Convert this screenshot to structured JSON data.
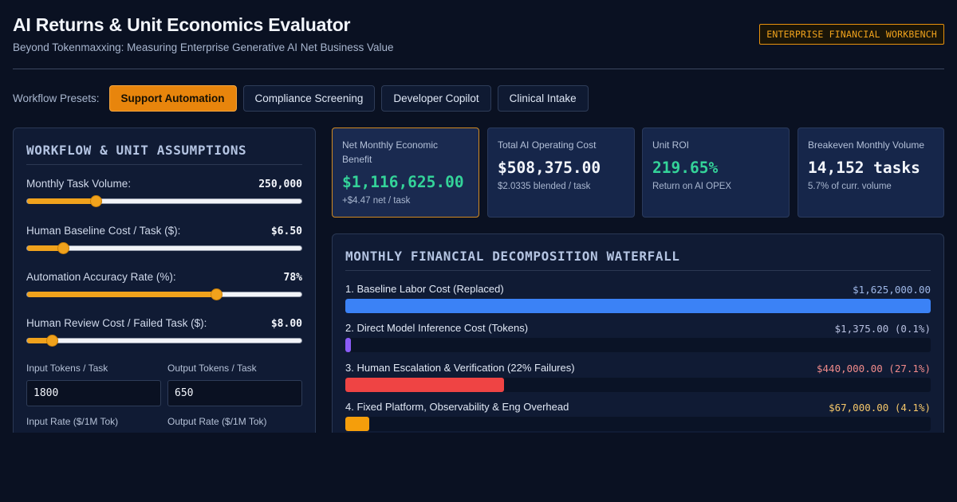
{
  "header": {
    "title": "AI Returns & Unit Economics Evaluator",
    "subtitle": "Beyond Tokenmaxxing: Measuring Enterprise Generative AI Net Business Value",
    "badge": "ENTERPRISE FINANCIAL WORKBENCH"
  },
  "presets": {
    "label": "Workflow Presets:",
    "items": [
      {
        "label": "Support Automation",
        "active": true
      },
      {
        "label": "Compliance Screening",
        "active": false
      },
      {
        "label": "Developer Copilot",
        "active": false
      },
      {
        "label": "Clinical Intake",
        "active": false
      }
    ]
  },
  "assumptions": {
    "title": "WORKFLOW & UNIT ASSUMPTIONS",
    "sliders": [
      {
        "label": "Monthly Task Volume:",
        "value": "250,000",
        "fill": 0.25
      },
      {
        "label": "Human Baseline Cost / Task ($):",
        "value": "$6.50",
        "fill": 0.13
      },
      {
        "label": "Automation Accuracy Rate (%):",
        "value": "78%",
        "fill": 0.69
      },
      {
        "label": "Human Review Cost / Failed Task ($):",
        "value": "$8.00",
        "fill": 0.09
      }
    ],
    "fields": [
      {
        "label": "Input Tokens / Task",
        "value": "1800"
      },
      {
        "label": "Output Tokens / Task",
        "value": "650"
      },
      {
        "label": "Input Rate ($/1M Tok)",
        "value": ""
      },
      {
        "label": "Output Rate ($/1M Tok)",
        "value": ""
      }
    ]
  },
  "kpis": [
    {
      "label": "Net Monthly Economic Benefit",
      "value": "$1,116,625.00",
      "sub": "+$4.47 net / task",
      "tone": "green",
      "highlight": true
    },
    {
      "label": "Total AI Operating Cost",
      "value": "$508,375.00",
      "sub": "$2.0335 blended / task",
      "tone": "white",
      "highlight": false
    },
    {
      "label": "Unit ROI",
      "value": "219.65%",
      "sub": "Return on AI OPEX",
      "tone": "green",
      "highlight": false
    },
    {
      "label": "Breakeven Monthly Volume",
      "value": "14,152 tasks",
      "sub": "5.7% of curr. volume",
      "tone": "white",
      "highlight": false
    }
  ],
  "waterfall": {
    "title": "MONTHLY FINANCIAL DECOMPOSITION WATERFALL",
    "rows": [
      {
        "label": "1. Baseline Labor Cost (Replaced)",
        "amount": "$1,625,000.00",
        "share": 1.0,
        "color": "#3b82f6",
        "amount_color": "#9fb8e8"
      },
      {
        "label": "2. Direct Model Inference Cost (Tokens)",
        "amount": "$1,375.00 (0.1%)",
        "share": 0.009,
        "color": "#8b5cf6",
        "amount_color": "#b8c0e0"
      },
      {
        "label": "3. Human Escalation & Verification (22% Failures)",
        "amount": "$440,000.00 (27.1%)",
        "share": 0.271,
        "color": "#ef4444",
        "amount_color": "#f08a8a"
      },
      {
        "label": "4. Fixed Platform, Observability & Eng Overhead",
        "amount": "$67,000.00 (4.1%)",
        "share": 0.041,
        "color": "#f59e0b",
        "amount_color": "#f5c76a"
      }
    ]
  }
}
